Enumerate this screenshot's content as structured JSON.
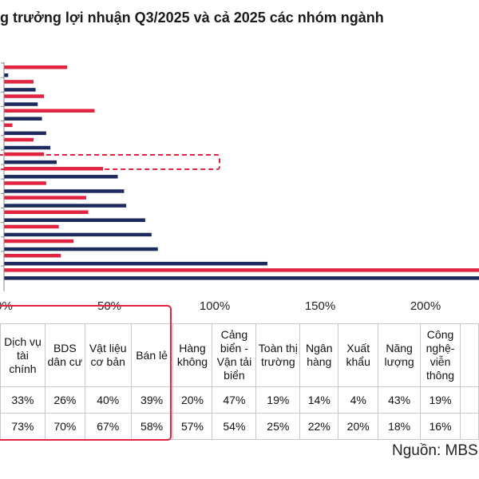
{
  "title": "g trưởng lợi nhuận Q3/2025 và cả 2025 các nhóm ngành",
  "source": "Nguồn: MBS",
  "colors": {
    "series_q3": "#e0243f",
    "series_2025": "#1c2a5c",
    "highlight": "#e0243f"
  },
  "chart_data": {
    "type": "bar",
    "orientation": "horizontal",
    "x_ticks": [
      "0%",
      "50%",
      "100%",
      "150%",
      "200%"
    ],
    "xlim": [
      0,
      225
    ],
    "grid": false,
    "series": [
      {
        "values": [
          30,
          14,
          19,
          43,
          4,
          14,
          19,
          47,
          20,
          39,
          40,
          26,
          33,
          27,
          230
        ]
      },
      {
        "values": [
          2,
          15,
          16,
          18,
          20,
          22,
          25,
          54,
          57,
          58,
          67,
          70,
          73,
          125,
          230
        ]
      }
    ]
  },
  "table": {
    "columns": [
      "Dịch vụ tài chính",
      "BDS dân cư",
      "Vật liệu cơ bản",
      "Bán lẻ",
      "Hàng không",
      "Cảng biển - Vận tải biển",
      "Toàn thị trường",
      "Ngân hàng",
      "Xuất khẩu",
      "Năng lượng",
      "Công nghệ-viễn thông"
    ],
    "row1": [
      "33%",
      "26%",
      "40%",
      "39%",
      "20%",
      "47%",
      "19%",
      "14%",
      "4%",
      "43%",
      "19%"
    ],
    "row2": [
      "73%",
      "70%",
      "67%",
      "58%",
      "57%",
      "54%",
      "25%",
      "22%",
      "20%",
      "18%",
      "16%"
    ]
  }
}
